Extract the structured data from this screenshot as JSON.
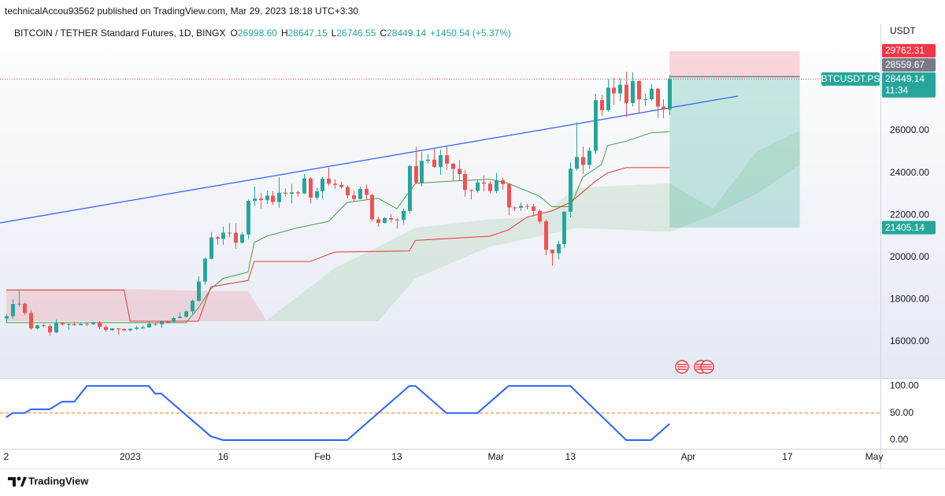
{
  "header": {
    "publisher": "technicalAccou93562 published on TradingView.com, Mar 29, 2023 18:18 UTC+3:30"
  },
  "footer": {
    "brand": "TradingView"
  },
  "chart_data": [
    {
      "type": "candlestick",
      "symbol": "BITCOIN / TETHER Standard Futures, 1D, BINGX",
      "legend": [
        {
          "key": "O",
          "value": "26998.60"
        },
        {
          "key": "H",
          "value": "28647.15"
        },
        {
          "key": "L",
          "value": "26746.55"
        },
        {
          "key": "C",
          "value": "28449.14"
        }
      ],
      "change": "+1450.54 (+5.37%)",
      "currency": "USDT",
      "up_color": "#26a69a",
      "down_color": "#ef5350",
      "x": [
        "2022-12-12",
        "2022-12-13",
        "2022-12-14",
        "2022-12-15",
        "2022-12-16",
        "2022-12-17",
        "2022-12-18",
        "2022-12-19",
        "2022-12-20",
        "2022-12-21",
        "2022-12-22",
        "2022-12-23",
        "2022-12-24",
        "2022-12-25",
        "2022-12-26",
        "2022-12-27",
        "2022-12-28",
        "2022-12-29",
        "2022-12-30",
        "2022-12-31",
        "2023-01-01",
        "2023-01-02",
        "2023-01-03",
        "2023-01-04",
        "2023-01-05",
        "2023-01-06",
        "2023-01-07",
        "2023-01-08",
        "2023-01-09",
        "2023-01-10",
        "2023-01-11",
        "2023-01-12",
        "2023-01-13",
        "2023-01-14",
        "2023-01-15",
        "2023-01-16",
        "2023-01-17",
        "2023-01-18",
        "2023-01-19",
        "2023-01-20",
        "2023-01-21",
        "2023-01-22",
        "2023-01-23",
        "2023-01-24",
        "2023-01-25",
        "2023-01-26",
        "2023-01-27",
        "2023-01-28",
        "2023-01-29",
        "2023-01-30",
        "2023-01-31",
        "2023-02-01",
        "2023-02-02",
        "2023-02-03",
        "2023-02-04",
        "2023-02-05",
        "2023-02-06",
        "2023-02-07",
        "2023-02-08",
        "2023-02-09",
        "2023-02-10",
        "2023-02-11",
        "2023-02-12",
        "2023-02-13",
        "2023-02-14",
        "2023-02-15",
        "2023-02-16",
        "2023-02-17",
        "2023-02-18",
        "2023-02-19",
        "2023-02-20",
        "2023-02-21",
        "2023-02-22",
        "2023-02-23",
        "2023-02-24",
        "2023-02-25",
        "2023-02-26",
        "2023-02-27",
        "2023-02-28",
        "2023-03-01",
        "2023-03-02",
        "2023-03-03",
        "2023-03-04",
        "2023-03-05",
        "2023-03-06",
        "2023-03-07",
        "2023-03-08",
        "2023-03-09",
        "2023-03-10",
        "2023-03-11",
        "2023-03-12",
        "2023-03-13",
        "2023-03-14",
        "2023-03-15",
        "2023-03-16",
        "2023-03-17",
        "2023-03-18",
        "2023-03-19",
        "2023-03-20",
        "2023-03-21",
        "2023-03-22",
        "2023-03-23",
        "2023-03-24",
        "2023-03-25",
        "2023-03-26",
        "2023-03-27",
        "2023-03-28",
        "2023-03-29"
      ],
      "open": [
        17100,
        17210,
        17790,
        17800,
        17360,
        16630,
        16780,
        16740,
        16440,
        16900,
        16820,
        16830,
        16780,
        16840,
        16830,
        16920,
        16700,
        16550,
        16630,
        16600,
        16540,
        16610,
        16670,
        16680,
        16850,
        16830,
        16950,
        16940,
        17120,
        17180,
        17440,
        17940,
        18850,
        19930,
        20950,
        20880,
        21170,
        21160,
        20690,
        21080,
        22680,
        22780,
        22710,
        22920,
        22620,
        23060,
        23010,
        23080,
        23030,
        23740,
        22830,
        23130,
        23730,
        23490,
        23430,
        23330,
        22940,
        22760,
        23240,
        22960,
        21800,
        21630,
        21860,
        21790,
        21770,
        22200,
        24330,
        23530,
        24570,
        24630,
        24280,
        24840,
        24440,
        24190,
        23950,
        23190,
        23150,
        23550,
        23490,
        23140,
        23650,
        23470,
        22360,
        22350,
        22430,
        22410,
        22200,
        21700,
        20360,
        20190,
        20630,
        22160,
        24200,
        24750,
        24380,
        25050,
        27450,
        26970,
        28040,
        27770,
        28180,
        27310,
        28350,
        27480,
        27490,
        27990,
        27140,
        26998.6
      ],
      "high": [
        17300,
        18000,
        18400,
        17850,
        17500,
        16800,
        16850,
        16820,
        17050,
        16930,
        16870,
        16950,
        16870,
        16880,
        16950,
        16970,
        16780,
        16650,
        16650,
        16640,
        16630,
        16760,
        16780,
        16990,
        16880,
        17010,
        16970,
        17180,
        17400,
        17490,
        17990,
        19100,
        19990,
        21200,
        21000,
        21450,
        21600,
        21620,
        21180,
        22750,
        23350,
        23050,
        23150,
        23140,
        23800,
        23270,
        23480,
        23160,
        23950,
        23800,
        23300,
        23800,
        24250,
        23700,
        23580,
        23430,
        23160,
        23350,
        23450,
        23000,
        21900,
        21900,
        22060,
        21880,
        22310,
        24380,
        25250,
        25000,
        24890,
        25170,
        25100,
        25250,
        24480,
        24600,
        24130,
        23220,
        23650,
        23880,
        23600,
        24000,
        23780,
        23480,
        22420,
        22600,
        22550,
        22530,
        22270,
        21800,
        20360,
        20790,
        22180,
        24500,
        26400,
        25250,
        25200,
        27750,
        27700,
        28450,
        28500,
        28500,
        28800,
        28760,
        28400,
        27770,
        28200,
        28020,
        27500,
        28647.15
      ],
      "low": [
        16900,
        17100,
        17650,
        17280,
        16560,
        16580,
        16680,
        16270,
        16400,
        16760,
        16560,
        16760,
        16780,
        16740,
        16800,
        16600,
        16480,
        16510,
        16330,
        16500,
        16500,
        16550,
        16600,
        16660,
        16760,
        16650,
        16910,
        16910,
        17100,
        17150,
        17320,
        17900,
        18700,
        19900,
        20600,
        20600,
        20950,
        20400,
        20660,
        20870,
        22430,
        22300,
        22530,
        22480,
        22350,
        22880,
        22550,
        22880,
        22990,
        22550,
        22720,
        22780,
        23400,
        23250,
        23260,
        22790,
        22650,
        22750,
        22700,
        21700,
        21460,
        21600,
        21640,
        21370,
        21550,
        22060,
        23500,
        23360,
        24450,
        24250,
        23900,
        24150,
        23600,
        23620,
        22870,
        22750,
        23070,
        23120,
        23030,
        23030,
        23200,
        22000,
        22200,
        22200,
        22270,
        21930,
        21600,
        20100,
        19600,
        19900,
        20450,
        21900,
        24100,
        23950,
        24200,
        24900,
        26700,
        26900,
        27230,
        27400,
        26650,
        27150,
        26800,
        27180,
        27410,
        26600,
        26600,
        26746.55
      ],
      "close": [
        17210,
        17790,
        17800,
        17360,
        16630,
        16780,
        16740,
        16440,
        16900,
        16820,
        16830,
        16780,
        16840,
        16830,
        16920,
        16700,
        16550,
        16630,
        16600,
        16540,
        16610,
        16670,
        16680,
        16850,
        16830,
        16950,
        16940,
        17120,
        17180,
        17440,
        17940,
        18850,
        19930,
        20950,
        20880,
        21170,
        21160,
        20690,
        21080,
        22680,
        22780,
        22710,
        22920,
        22620,
        23060,
        23010,
        23080,
        23030,
        23740,
        22830,
        23130,
        23730,
        23490,
        23430,
        23330,
        22940,
        22760,
        23240,
        22960,
        21800,
        21630,
        21860,
        21790,
        21770,
        22200,
        24330,
        23530,
        24570,
        24630,
        24280,
        24840,
        24440,
        24190,
        23950,
        23190,
        23150,
        23550,
        23490,
        23140,
        23650,
        23470,
        22360,
        22350,
        22430,
        22410,
        22200,
        21700,
        20360,
        20190,
        20630,
        22160,
        24200,
        24750,
        24380,
        25050,
        27450,
        26970,
        28040,
        27770,
        28180,
        27310,
        28350,
        27480,
        27490,
        27990,
        27140,
        26998.6,
        28449.14
      ],
      "xlim": [
        "2022-12-11",
        "2023-05-02"
      ],
      "xticks": [
        {
          "value": "2022-12-12",
          "label": "2"
        },
        {
          "value": "2023-01-01",
          "label": "2023"
        },
        {
          "value": "2023-01-16",
          "label": "16"
        },
        {
          "value": "2023-02-01",
          "label": "Feb"
        },
        {
          "value": "2023-02-13",
          "label": "13"
        },
        {
          "value": "2023-03-01",
          "label": "Mar"
        },
        {
          "value": "2023-03-13",
          "label": "13"
        },
        {
          "value": "2023-04-01",
          "label": "Apr"
        },
        {
          "value": "2023-04-17",
          "label": "17"
        },
        {
          "value": "2023-05-01",
          "label": "May"
        }
      ],
      "ylim": [
        14284,
        31075
      ],
      "yticks": [
        {
          "value": 16000,
          "label": "16000.00"
        },
        {
          "value": 18000,
          "label": "18000.00"
        },
        {
          "value": 20000,
          "label": "20000.00"
        },
        {
          "value": 22000,
          "label": "22000.00"
        },
        {
          "value": 24000,
          "label": "24000.00"
        },
        {
          "value": 26000,
          "label": "26000.00"
        }
      ],
      "trend_line": {
        "x": [
          "2022-12-11",
          "2023-04-09"
        ],
        "values": [
          21630,
          27640
        ],
        "color": "#2962ff"
      },
      "ichimoku": {
        "conversion": {
          "color": "#43a047",
          "x": [
            "2022-12-12",
            "2023-01-10",
            "2023-01-12",
            "2023-01-14",
            "2023-01-16",
            "2023-01-20",
            "2023-01-21",
            "2023-01-23",
            "2023-01-28",
            "2023-02-02",
            "2023-02-05",
            "2023-02-10",
            "2023-02-13",
            "2023-02-16",
            "2023-02-21",
            "2023-02-28",
            "2023-03-03",
            "2023-03-08",
            "2023-03-10",
            "2023-03-13",
            "2023-03-15",
            "2023-03-18",
            "2023-03-19",
            "2023-03-22",
            "2023-03-26",
            "2023-03-29"
          ],
          "values": [
            16900,
            16900,
            17600,
            18500,
            19000,
            19300,
            20700,
            21000,
            21400,
            21700,
            22600,
            22800,
            22300,
            23500,
            23600,
            23700,
            23500,
            22900,
            22400,
            22400,
            23800,
            24400,
            25300,
            25500,
            25900,
            25950
          ]
        },
        "base": {
          "color": "#e53935",
          "x": [
            "2022-12-12",
            "2022-12-31",
            "2023-01-01",
            "2023-01-12",
            "2023-01-14",
            "2023-01-20",
            "2023-01-21",
            "2023-01-30",
            "2023-02-03",
            "2023-02-15",
            "2023-02-16",
            "2023-02-28",
            "2023-03-03",
            "2023-03-06",
            "2023-03-10",
            "2023-03-13",
            "2023-03-17",
            "2023-03-19",
            "2023-03-22",
            "2023-03-29"
          ],
          "values": [
            18450,
            18450,
            16970,
            16970,
            18600,
            18900,
            19800,
            19800,
            20250,
            20300,
            20800,
            21000,
            21300,
            21900,
            22200,
            22600,
            23600,
            24000,
            24250,
            24250
          ]
        },
        "clouds": [
          {
            "color": "rgba(242,54,69,0.15)",
            "x": [
              "2022-12-12",
              "2022-12-31",
              "2023-01-14",
              "2023-01-20",
              "2023-01-23"
            ],
            "upper": [
              18500,
              18500,
              18400,
              18400,
              17000
            ],
            "lower": [
              16970,
              16970,
              16970,
              16970,
              16970
            ]
          },
          {
            "color": "rgba(67,160,71,0.13)",
            "x": [
              "2023-01-23",
              "2023-02-03",
              "2023-02-10",
              "2023-02-16",
              "2023-02-28",
              "2023-03-08",
              "2023-03-14",
              "2023-03-29",
              "2023-04-05",
              "2023-04-12",
              "2023-04-19"
            ],
            "upper": [
              17000,
              19500,
              20500,
              21400,
              21800,
              21900,
              23300,
              23500,
              22300,
              25000,
              26000
            ],
            "lower": [
              16970,
              16970,
              16970,
              19000,
              20500,
              21000,
              21400,
              21200,
              22000,
              23000,
              24400
            ]
          }
        ]
      },
      "position": {
        "x": [
          "2023-03-29",
          "2023-04-19"
        ],
        "entry": 28559.67,
        "stop": 29762.31,
        "target": 21405.14,
        "stop_color": "rgba(242,54,69,0.2)",
        "target_color": "rgba(8,153,129,0.22)"
      },
      "price_tags": [
        {
          "value": 29762.31,
          "color": "#f23645"
        },
        {
          "value": 28559.67,
          "color": "#787b86"
        },
        {
          "value": 28449.14,
          "color": "#26a69a",
          "name": "BTCUSDT.PS",
          "countdown": "11:34"
        },
        {
          "value": 21405.14,
          "color": "#26a69a"
        }
      ]
    },
    {
      "type": "line",
      "color": "#2962ff",
      "x": [
        "2022-12-12",
        "2022-12-13",
        "2022-12-15",
        "2022-12-16",
        "2022-12-19",
        "2022-12-21",
        "2022-12-23",
        "2022-12-25",
        "2023-01-04",
        "2023-01-05",
        "2023-01-06",
        "2023-01-14",
        "2023-01-16",
        "2023-02-05",
        "2023-02-15",
        "2023-02-16",
        "2023-02-21",
        "2023-02-26",
        "2023-03-03",
        "2023-03-13",
        "2023-03-22",
        "2023-03-26",
        "2023-03-29"
      ],
      "values": [
        42,
        50,
        50,
        57,
        57,
        71,
        71,
        100,
        100,
        86,
        86,
        7,
        0,
        0,
        100,
        100,
        50,
        50,
        100,
        100,
        0,
        0,
        30
      ],
      "ylim": [
        -16,
        112
      ],
      "yticks": [
        {
          "value": 100,
          "label": "100.00"
        },
        {
          "value": 50,
          "label": "50.00"
        },
        {
          "value": 0,
          "label": "0.00"
        }
      ],
      "reference_line": {
        "value": 50,
        "color": "#f57c00"
      }
    }
  ]
}
